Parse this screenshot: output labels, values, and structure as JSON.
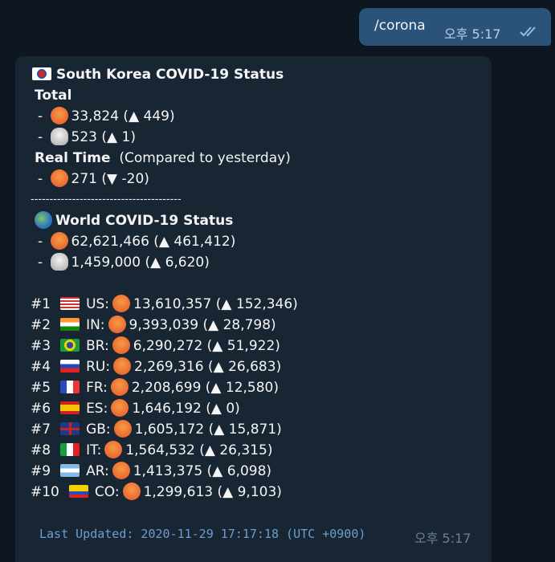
{
  "outgoing": {
    "text": "/corona",
    "time": "오후 5:17"
  },
  "incoming": {
    "korea_title": "South Korea COVID-19 Status",
    "total_label": "Total",
    "total_lines": [
      "33,824 (▲ 449)",
      "523 (▲ 1)"
    ],
    "realtime_label": "Real Time",
    "realtime_note": "(Compared to yesterday)",
    "realtime_lines": [
      "271 (▼ -20)"
    ],
    "divider": "----------------------------------------",
    "world_title": "World COVID-19 Status",
    "world_lines": [
      "62,621,466 (▲ 461,412)",
      "1,459,000 (▲ 6,620)"
    ],
    "countries": [
      {
        "rank": "#1",
        "code": "US:",
        "text": "13,610,357 (▲ 152,346)"
      },
      {
        "rank": "#2",
        "code": "IN:",
        "text": "9,393,039 (▲ 28,798)"
      },
      {
        "rank": "#3",
        "code": "BR:",
        "text": "6,290,272 (▲ 51,922)"
      },
      {
        "rank": "#4",
        "code": "RU:",
        "text": "2,269,316 (▲ 26,683)"
      },
      {
        "rank": "#5",
        "code": "FR:",
        "text": "2,208,699 (▲ 12,580)"
      },
      {
        "rank": "#6",
        "code": "ES:",
        "text": "1,646,192 (▲ 0)"
      },
      {
        "rank": "#7",
        "code": "GB:",
        "text": "1,605,172 (▲ 15,871)"
      },
      {
        "rank": "#8",
        "code": "IT:",
        "text": "1,564,532 (▲ 26,315)"
      },
      {
        "rank": "#9",
        "code": "AR:",
        "text": "1,413,375 (▲ 6,098)"
      },
      {
        "rank": "#10",
        "code": "CO:",
        "text": "1,299,613 (▲ 9,103)"
      }
    ],
    "last_updated": "Last Updated: 2020-11-29 17:17:18 (UTC +0900)",
    "time": "오후 5:17"
  }
}
